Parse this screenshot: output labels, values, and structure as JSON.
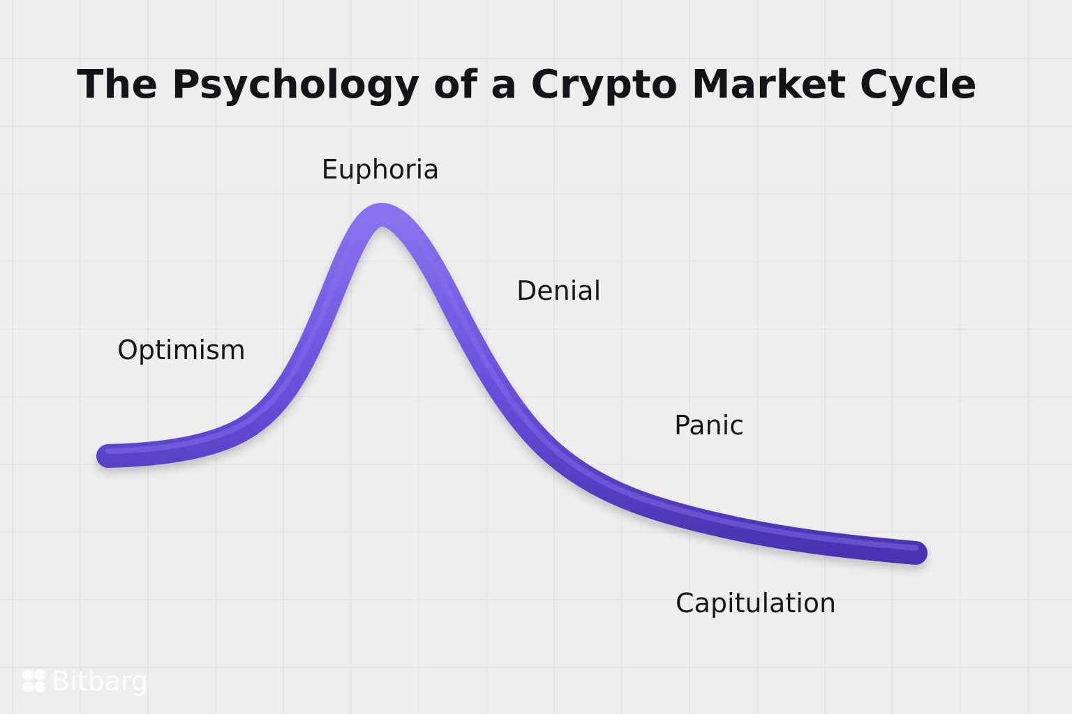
{
  "title": "The Psychology of a Crypto Market Cycle",
  "stages": [
    {
      "id": "optimism",
      "label": "Optimism"
    },
    {
      "id": "euphoria",
      "label": "Euphoria"
    },
    {
      "id": "denial",
      "label": "Denial"
    },
    {
      "id": "panic",
      "label": "Panic"
    },
    {
      "id": "capitulation",
      "label": "Capitulation"
    }
  ],
  "watermark": {
    "brand": "Bitbarg",
    "icon": "bitbarg-logo-icon"
  },
  "colors": {
    "background": "#eeeeee",
    "grid": "#dedede",
    "curve": "#6b4fdc",
    "curve_highlight": "#8a72ee",
    "curve_shadow": "#4a32b0",
    "text": "#16161c"
  }
}
